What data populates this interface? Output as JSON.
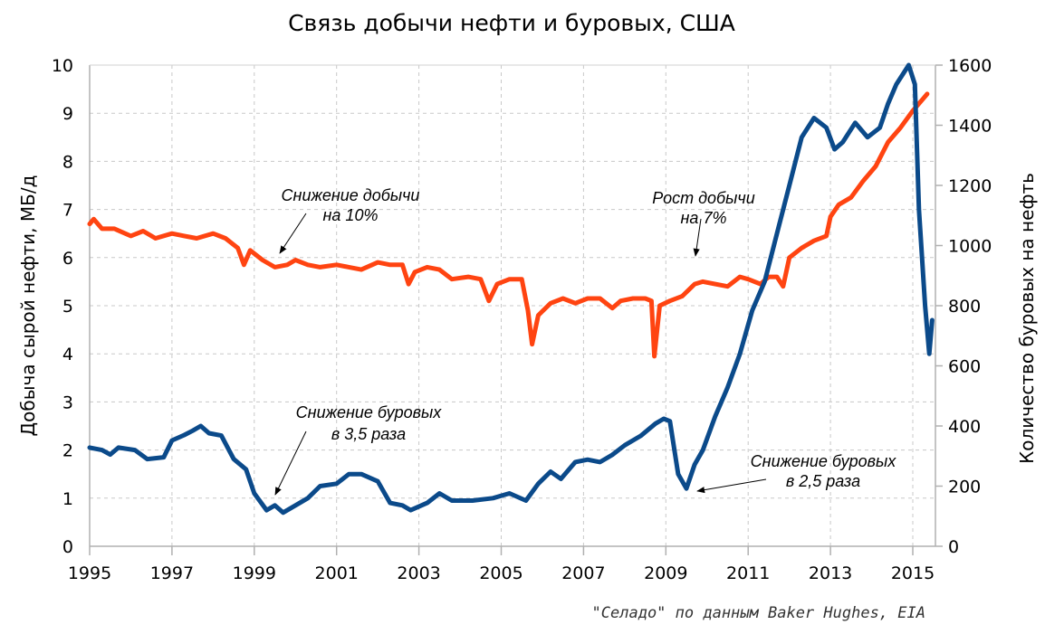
{
  "chart_data": {
    "type": "line",
    "title": "Связь добычи нефти и буровых, США",
    "ylabel": "Добыча сырой нефти, МБ/д",
    "y2label": "Количество буровых на нефть",
    "source": "\"Селадо\" по данным Baker Hughes, EIA",
    "xlim": [
      1995,
      2015.6
    ],
    "ylim": [
      0,
      10
    ],
    "y2lim": [
      0,
      1600
    ],
    "x_ticks": [
      "1995",
      "1997",
      "1999",
      "2001",
      "2003",
      "2005",
      "2007",
      "2009",
      "2011",
      "2013",
      "2015"
    ],
    "y_ticks": [
      "0",
      "1",
      "2",
      "3",
      "4",
      "5",
      "6",
      "7",
      "8",
      "9",
      "10"
    ],
    "y2_ticks": [
      "0",
      "200",
      "400",
      "600",
      "800",
      "1000",
      "1200",
      "1400",
      "1600"
    ],
    "grid": true,
    "colors": {
      "production": "#ff4411",
      "rigs": "#0b4a8a"
    },
    "series": [
      {
        "name": "Добыча нефти",
        "axis": "left",
        "x": [
          1995.0,
          1995.1,
          1995.3,
          1995.6,
          1996.0,
          1996.3,
          1996.6,
          1997.0,
          1997.3,
          1997.6,
          1998.0,
          1998.3,
          1998.6,
          1998.75,
          1998.9,
          1999.2,
          1999.5,
          1999.8,
          2000.0,
          2000.3,
          2000.6,
          2001.0,
          2001.3,
          2001.6,
          2002.0,
          2002.3,
          2002.6,
          2002.75,
          2002.9,
          2003.2,
          2003.5,
          2003.8,
          2004.2,
          2004.5,
          2004.7,
          2004.9,
          2005.2,
          2005.5,
          2005.65,
          2005.75,
          2005.9,
          2006.2,
          2006.5,
          2006.8,
          2007.1,
          2007.4,
          2007.7,
          2007.9,
          2008.2,
          2008.5,
          2008.65,
          2008.72,
          2008.85,
          2009.1,
          2009.4,
          2009.7,
          2009.9,
          2010.2,
          2010.5,
          2010.8,
          2011.0,
          2011.3,
          2011.5,
          2011.7,
          2011.85,
          2012.0,
          2012.3,
          2012.6,
          2012.9,
          2013.0,
          2013.2,
          2013.5,
          2013.8,
          2014.1,
          2014.4,
          2014.7,
          2015.0,
          2015.2,
          2015.35
        ],
        "values": [
          6.7,
          6.8,
          6.6,
          6.6,
          6.45,
          6.55,
          6.4,
          6.5,
          6.45,
          6.4,
          6.5,
          6.4,
          6.2,
          5.85,
          6.15,
          5.95,
          5.8,
          5.85,
          5.95,
          5.85,
          5.8,
          5.85,
          5.8,
          5.75,
          5.9,
          5.85,
          5.85,
          5.45,
          5.7,
          5.8,
          5.75,
          5.55,
          5.6,
          5.55,
          5.1,
          5.45,
          5.55,
          5.55,
          4.9,
          4.2,
          4.8,
          5.05,
          5.15,
          5.05,
          5.15,
          5.15,
          4.95,
          5.1,
          5.15,
          5.15,
          5.1,
          3.95,
          5.0,
          5.1,
          5.2,
          5.45,
          5.5,
          5.45,
          5.4,
          5.6,
          5.55,
          5.45,
          5.6,
          5.6,
          5.4,
          6.0,
          6.2,
          6.35,
          6.45,
          6.85,
          7.1,
          7.25,
          7.6,
          7.9,
          8.4,
          8.7,
          9.05,
          9.25,
          9.4
        ]
      },
      {
        "name": "Количество буровых",
        "axis": "right",
        "x": [
          1995.0,
          1995.3,
          1995.5,
          1995.7,
          1996.1,
          1996.4,
          1996.8,
          1997.0,
          1997.3,
          1997.5,
          1997.7,
          1997.9,
          1998.2,
          1998.5,
          1998.8,
          1999.0,
          1999.3,
          1999.5,
          1999.7,
          2000.0,
          2000.3,
          2000.6,
          2001.0,
          2001.3,
          2001.6,
          2002.0,
          2002.3,
          2002.6,
          2002.8,
          2003.2,
          2003.5,
          2003.8,
          2004.3,
          2004.8,
          2005.2,
          2005.6,
          2005.9,
          2006.2,
          2006.45,
          2006.8,
          2007.1,
          2007.4,
          2007.7,
          2008.0,
          2008.4,
          2008.75,
          2008.95,
          2009.1,
          2009.3,
          2009.5,
          2009.7,
          2009.9,
          2010.2,
          2010.5,
          2010.8,
          2011.1,
          2011.4,
          2011.7,
          2012.0,
          2012.3,
          2012.6,
          2012.9,
          2013.1,
          2013.3,
          2013.6,
          2013.9,
          2014.2,
          2014.4,
          2014.6,
          2014.9,
          2015.05,
          2015.15,
          2015.3,
          2015.4,
          2015.47
        ],
        "values": [
          328,
          320,
          305,
          328,
          320,
          290,
          296,
          352,
          370,
          384,
          400,
          376,
          368,
          290,
          256,
          176,
          120,
          136,
          112,
          136,
          160,
          200,
          208,
          240,
          240,
          216,
          144,
          136,
          120,
          144,
          176,
          152,
          152,
          160,
          176,
          152,
          208,
          248,
          224,
          280,
          288,
          280,
          304,
          336,
          368,
          408,
          424,
          416,
          240,
          192,
          272,
          320,
          432,
          528,
          640,
          784,
          880,
          1040,
          1200,
          1360,
          1424,
          1392,
          1320,
          1344,
          1408,
          1360,
          1392,
          1472,
          1536,
          1600,
          1536,
          1120,
          800,
          640,
          752
        ]
      }
    ],
    "annotations": [
      {
        "text": [
          "Снижение добычи",
          "на 10%"
        ]
      },
      {
        "text": [
          "Рост добычи",
          "на 7%"
        ]
      },
      {
        "text": [
          "Снижение буровых",
          "в 3,5 раза"
        ]
      },
      {
        "text": [
          "Снижение буровых",
          "в 2,5 раза"
        ]
      }
    ]
  }
}
